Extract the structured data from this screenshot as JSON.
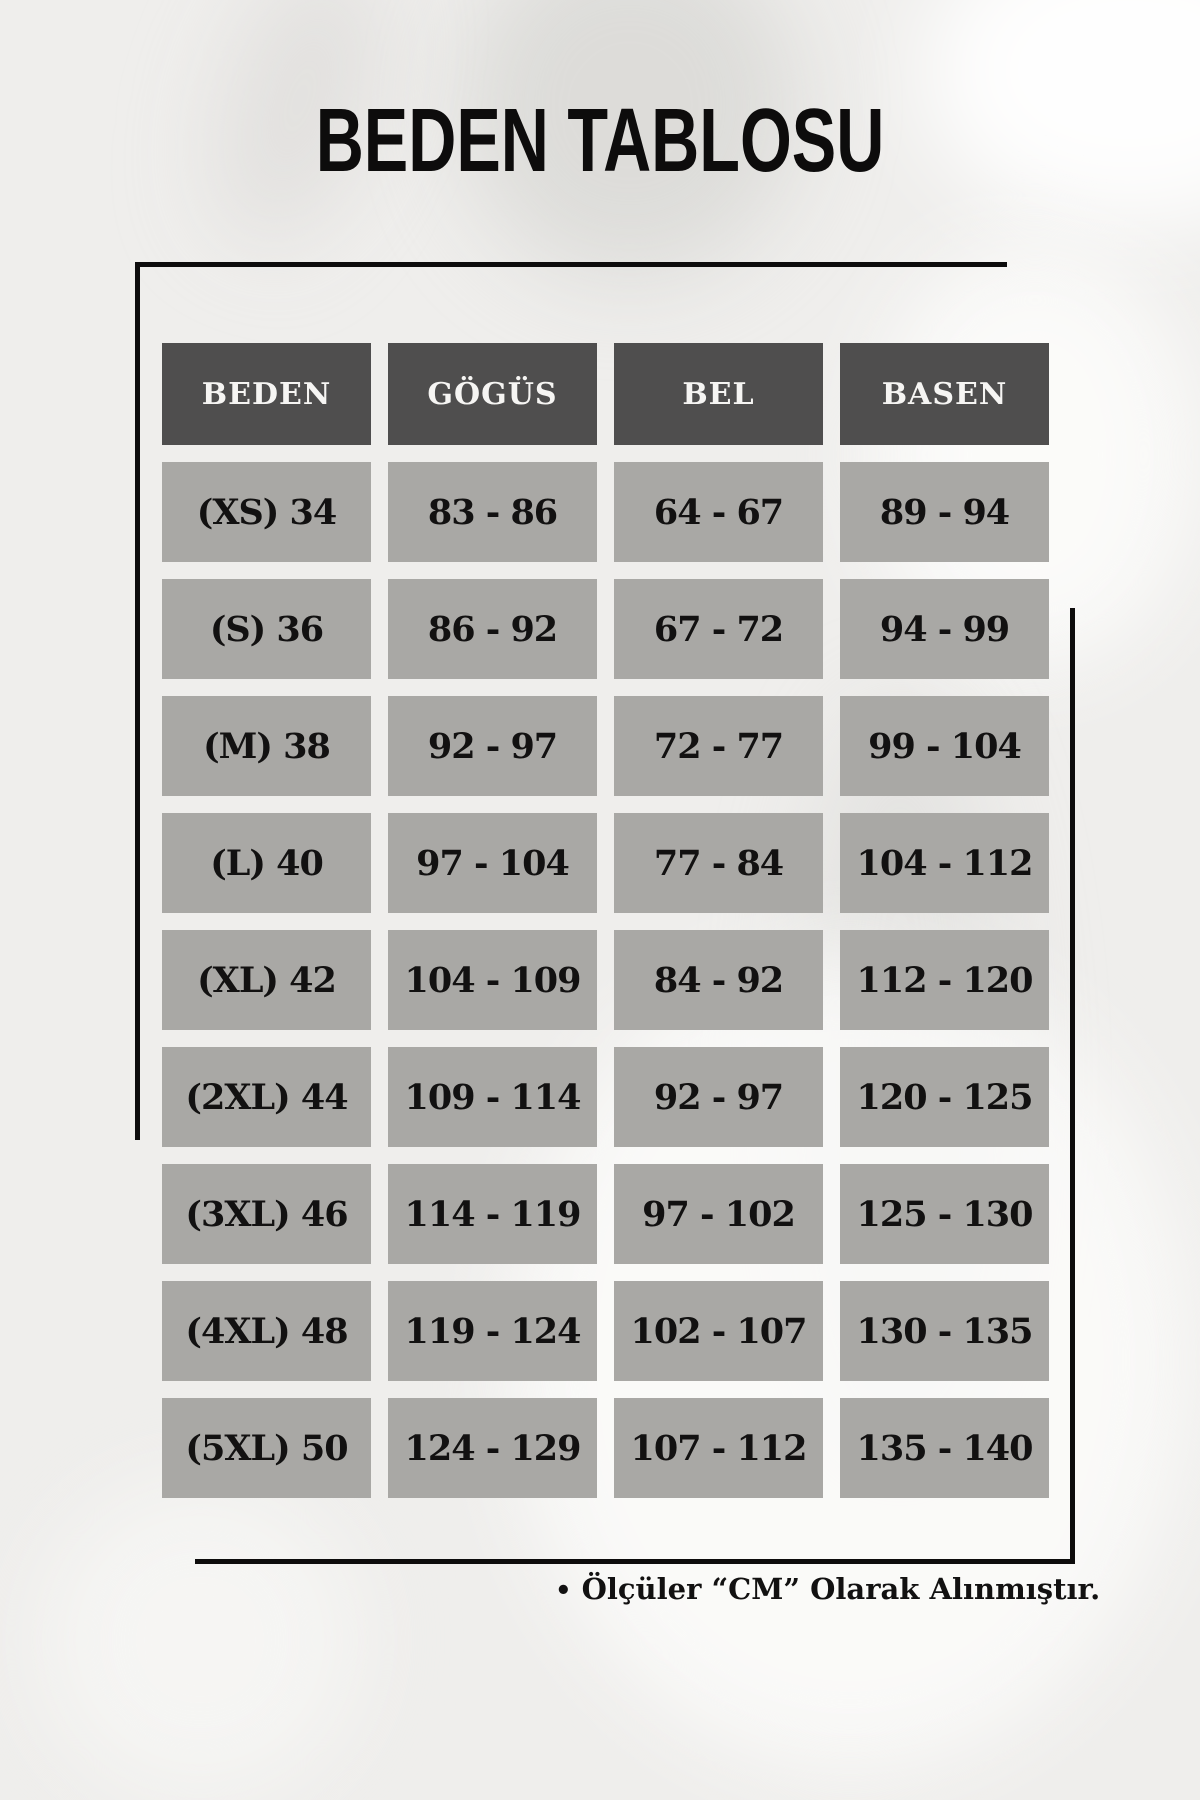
{
  "page": {
    "title": "BEDEN TABLOSU",
    "note_bullet": "•",
    "note": "Ölçüler “CM” Olarak Alınmıştır."
  },
  "chart_data": {
    "type": "table",
    "title": "BEDEN TABLOSU",
    "unit": "CM",
    "columns": [
      "BEDEN",
      "GÖGÜS",
      "BEL",
      "BASEN"
    ],
    "rows": [
      [
        "(XS) 34",
        "83 - 86",
        "64 - 67",
        "89 - 94"
      ],
      [
        "(S) 36",
        "86 - 92",
        "67 - 72",
        "94 - 99"
      ],
      [
        "(M) 38",
        "92 - 97",
        "72 - 77",
        "99 - 104"
      ],
      [
        "(L) 40",
        "97 - 104",
        "77 - 84",
        "104 - 112"
      ],
      [
        "(XL) 42",
        "104 - 109",
        "84 - 92",
        "112 - 120"
      ],
      [
        "(2XL) 44",
        "109 - 114",
        "92 - 97",
        "120 - 125"
      ],
      [
        "(3XL) 46",
        "114 - 119",
        "97 - 102",
        "125 - 130"
      ],
      [
        "(4XL) 48",
        "119 - 124",
        "102 - 107",
        "130 - 135"
      ],
      [
        "(5XL) 50",
        "124 - 129",
        "107 - 112",
        "135 - 140"
      ]
    ]
  },
  "colors": {
    "page_bg": "#efeeec",
    "header_bg": "#4f4e4e",
    "header_text": "#f6f5f3",
    "cell_bg": "#a9a8a5",
    "cell_text": "#121111",
    "frame_line": "#0d0c0c"
  }
}
